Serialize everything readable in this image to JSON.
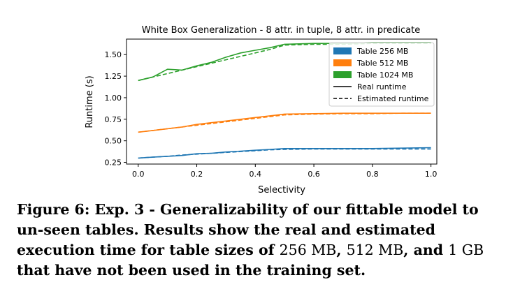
{
  "chart_data": {
    "type": "line",
    "title": "White Box Generalization - 8 attr. in tuple, 8 attr. in predicate",
    "xlabel": "Selectivity",
    "ylabel": "Runtime (s)",
    "xlim": [
      -0.04,
      1.02
    ],
    "ylim": [
      0.23,
      1.68
    ],
    "xticks": [
      0.0,
      0.2,
      0.4,
      0.6,
      0.8,
      1.0
    ],
    "xtick_labels": [
      "0.0",
      "0.2",
      "0.4",
      "0.6",
      "0.8",
      "1.0"
    ],
    "yticks": [
      0.25,
      0.5,
      0.75,
      1.0,
      1.25,
      1.5
    ],
    "ytick_labels": [
      "0.25",
      "0.50",
      "0.75",
      "1.00",
      "1.25",
      "1.50"
    ],
    "grid": false,
    "legend_position": "top-right",
    "legend": [
      {
        "label": "Table 256 MB",
        "kind": "patch",
        "color": "#1f77b4"
      },
      {
        "label": "Table 512 MB",
        "kind": "patch",
        "color": "#ff7f0e"
      },
      {
        "label": "Table 1024 MB",
        "kind": "patch",
        "color": "#2ca02c"
      },
      {
        "label": "Real runtime",
        "kind": "solid",
        "color": "#000000"
      },
      {
        "label": "Estimated runtime",
        "kind": "dashed",
        "color": "#000000"
      }
    ],
    "series": [
      {
        "name": "Table 256 MB",
        "color": "#1f77b4",
        "real": {
          "x": [
            0.0,
            0.05,
            0.1,
            0.15,
            0.2,
            0.25,
            0.3,
            0.35,
            0.4,
            0.45,
            0.5,
            0.6,
            0.7,
            0.8,
            0.9,
            1.0
          ],
          "y": [
            0.3,
            0.31,
            0.32,
            0.33,
            0.35,
            0.355,
            0.37,
            0.38,
            0.39,
            0.4,
            0.41,
            0.41,
            0.41,
            0.41,
            0.415,
            0.42
          ]
        },
        "estimated": {
          "x": [
            0.0,
            0.05,
            0.1,
            0.15,
            0.2,
            0.25,
            0.3,
            0.35,
            0.4,
            0.45,
            0.5,
            0.6,
            0.7,
            0.8,
            0.9,
            1.0
          ],
          "y": [
            0.3,
            0.31,
            0.32,
            0.335,
            0.345,
            0.355,
            0.365,
            0.375,
            0.385,
            0.395,
            0.4,
            0.405,
            0.405,
            0.405,
            0.405,
            0.405
          ]
        }
      },
      {
        "name": "Table 512 MB",
        "color": "#ff7f0e",
        "real": {
          "x": [
            0.0,
            0.05,
            0.1,
            0.15,
            0.2,
            0.25,
            0.3,
            0.35,
            0.4,
            0.45,
            0.5,
            0.6,
            0.7,
            0.8,
            0.9,
            1.0
          ],
          "y": [
            0.6,
            0.62,
            0.64,
            0.66,
            0.69,
            0.71,
            0.73,
            0.75,
            0.77,
            0.79,
            0.81,
            0.815,
            0.82,
            0.82,
            0.82,
            0.82
          ]
        },
        "estimated": {
          "x": [
            0.0,
            0.05,
            0.1,
            0.15,
            0.2,
            0.25,
            0.3,
            0.35,
            0.4,
            0.45,
            0.5,
            0.6,
            0.7,
            0.8,
            0.9,
            1.0
          ],
          "y": [
            0.6,
            0.62,
            0.64,
            0.66,
            0.68,
            0.7,
            0.72,
            0.74,
            0.76,
            0.78,
            0.8,
            0.81,
            0.815,
            0.815,
            0.82,
            0.82
          ]
        }
      },
      {
        "name": "Table 1024 MB",
        "color": "#2ca02c",
        "real": {
          "x": [
            0.0,
            0.05,
            0.1,
            0.15,
            0.2,
            0.25,
            0.3,
            0.35,
            0.4,
            0.45,
            0.5,
            0.6,
            0.7,
            0.8,
            0.9,
            1.0
          ],
          "y": [
            1.2,
            1.24,
            1.33,
            1.32,
            1.37,
            1.41,
            1.47,
            1.52,
            1.55,
            1.58,
            1.62,
            1.63,
            1.63,
            1.64,
            1.64,
            1.64
          ]
        },
        "estimated": {
          "x": [
            0.0,
            0.05,
            0.1,
            0.15,
            0.2,
            0.25,
            0.3,
            0.35,
            0.4,
            0.45,
            0.5,
            0.6,
            0.7,
            0.8,
            0.9,
            1.0
          ],
          "y": [
            1.2,
            1.24,
            1.28,
            1.32,
            1.36,
            1.4,
            1.44,
            1.48,
            1.52,
            1.56,
            1.61,
            1.62,
            1.62,
            1.63,
            1.63,
            1.63
          ]
        }
      }
    ]
  },
  "caption": {
    "p1": "Figure 6: Exp. 3 - Generalizability of our fittable model to un-seen tables. Results show the real and estimated execution time for table sizes of ",
    "n1": "256 MB",
    "p2": ", ",
    "n2": "512 MB",
    "p3": ", and ",
    "n3": "1 GB",
    "p4": " that have not been used in the training set."
  }
}
